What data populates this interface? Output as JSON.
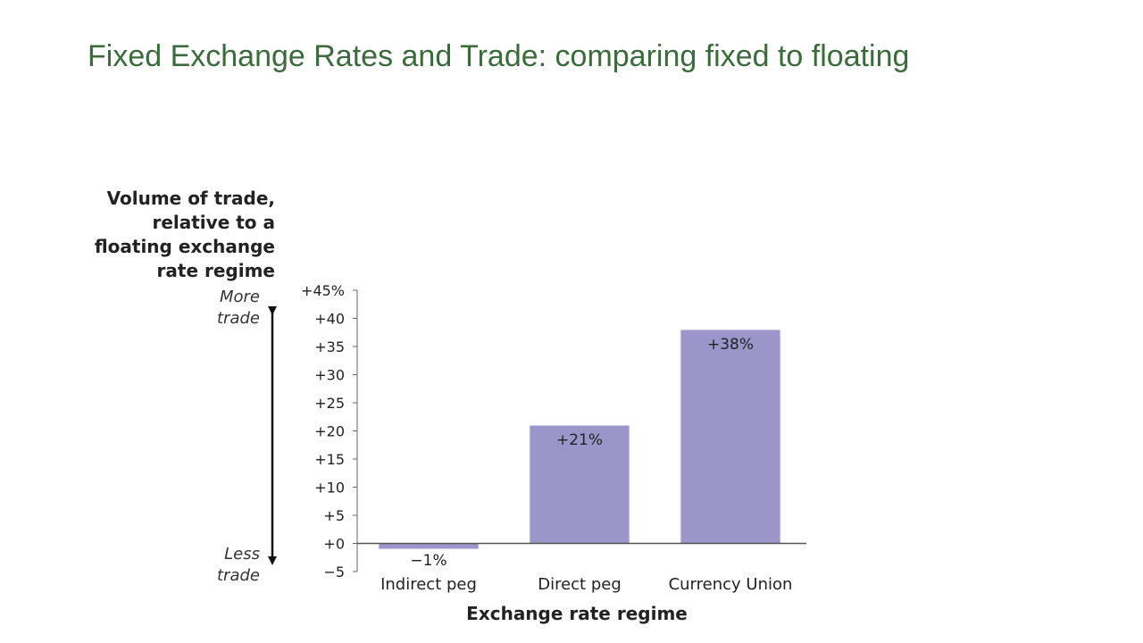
{
  "slide": {
    "title": "Fixed Exchange Rates and Trade: comparing fixed to floating"
  },
  "chart_data": {
    "type": "bar",
    "categories": [
      "Indirect peg",
      "Direct peg",
      "Currency Union"
    ],
    "values": [
      -1,
      21,
      38
    ],
    "data_labels": [
      "−1%",
      "+21%",
      "+38%"
    ],
    "ylabel_lines": [
      "Volume of trade,",
      "relative to a",
      "floating exchange",
      "rate regime"
    ],
    "xlabel": "Exchange rate regime",
    "ylim": [
      -5,
      45
    ],
    "yticks": [
      -5,
      0,
      5,
      10,
      15,
      20,
      25,
      30,
      35,
      40,
      45
    ],
    "ytick_labels": [
      "−5",
      "+0",
      "+5",
      "+10",
      "+15",
      "+20",
      "+25",
      "+30",
      "+35",
      "+40",
      "+45%"
    ],
    "axis_annotations": {
      "top": [
        "More",
        "trade"
      ],
      "bottom": [
        "Less",
        "trade"
      ]
    },
    "bar_color": "#9b95c9",
    "grid": false
  }
}
